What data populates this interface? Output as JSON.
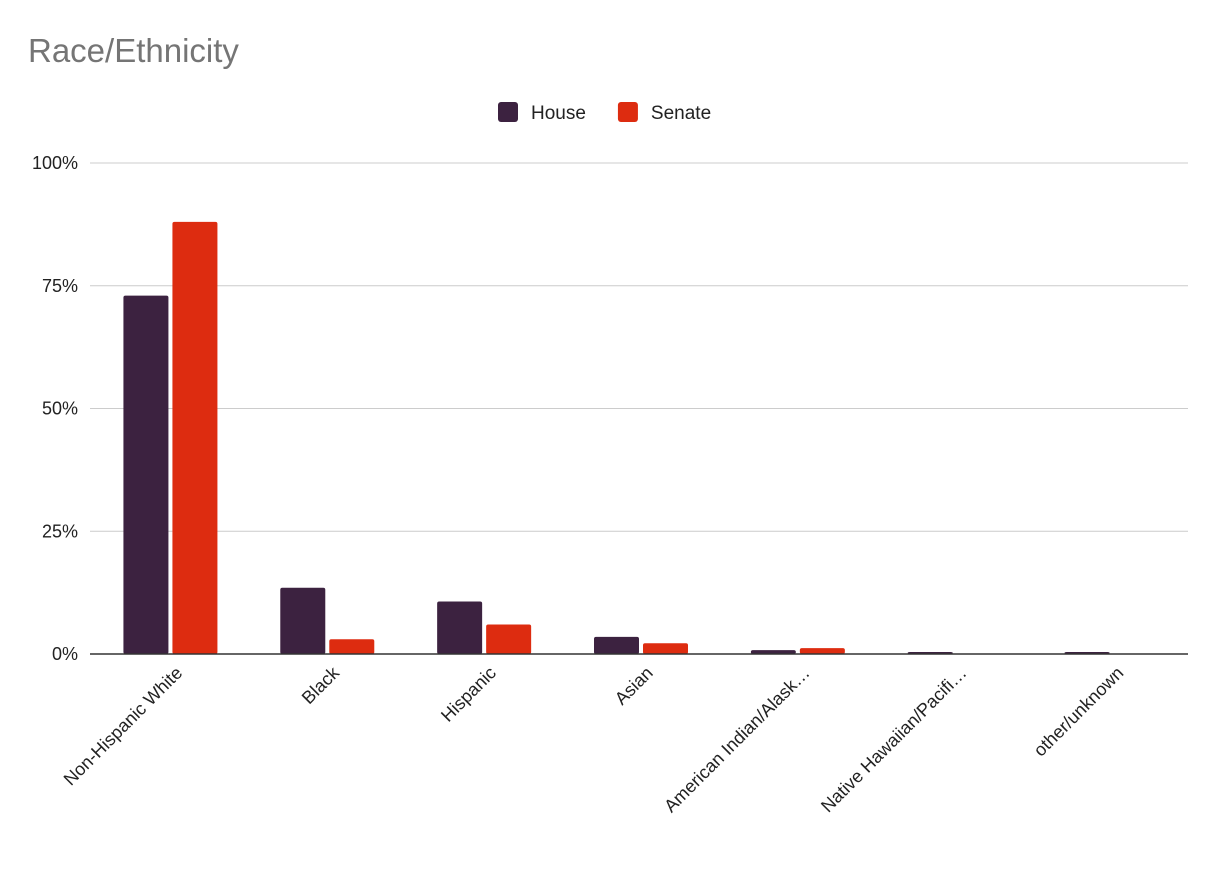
{
  "chart_data": {
    "type": "bar",
    "title": "Race/Ethnicity",
    "categories": [
      "Non-Hispanic White",
      "Black",
      "Hispanic",
      "Asian",
      "American Indian/Alask…",
      "Native Hawaiian/Pacifi…",
      "other/unknown"
    ],
    "series": [
      {
        "name": "House",
        "color": "#3c2240",
        "values": [
          73,
          13.5,
          10.7,
          3.5,
          0.8,
          0.4,
          0.4
        ]
      },
      {
        "name": "Senate",
        "color": "#dd2c10",
        "values": [
          88,
          3,
          6,
          2.2,
          1.2,
          0,
          0
        ]
      }
    ],
    "y_ticks": [
      "0%",
      "25%",
      "50%",
      "75%",
      "100%"
    ],
    "ylim": [
      0,
      100
    ],
    "grid": true,
    "legend_position": "top-center",
    "xlabel": "",
    "ylabel": ""
  }
}
